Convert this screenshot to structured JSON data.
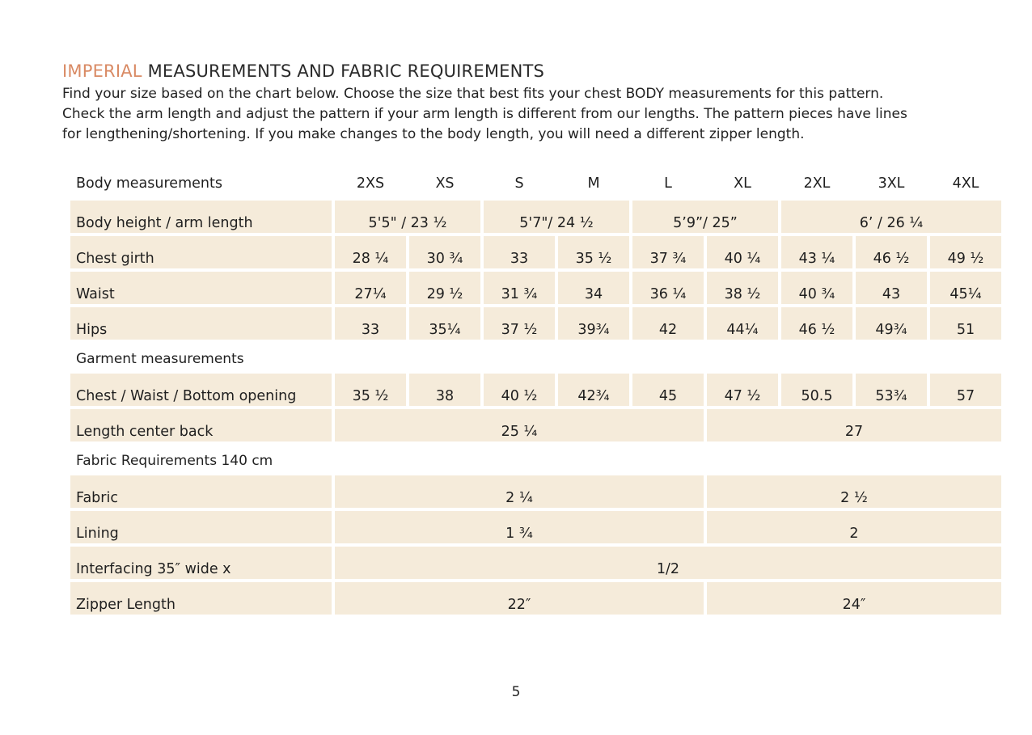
{
  "title": {
    "accent": "IMPERIAL",
    "rest": "MEASUREMENTS AND FABRIC REQUIREMENTS"
  },
  "intro_lines": [
    "Find your size based on the chart below. Choose the size that best fits your chest BODY measurements for this pattern.",
    "Check the arm length and adjust the pattern if your arm length is different from our lengths. The pattern pieces have lines",
    "for lengthening/shortening. If you make changes to the body length, you will need a different zipper length."
  ],
  "colors": {
    "accent": "#d98a64",
    "cell_background": "#f5ebda"
  },
  "table": {
    "header_label": "Body measurements",
    "sizes": [
      "2XS",
      "XS",
      "S",
      "M",
      "L",
      "XL",
      "2XL",
      "3XL",
      "4XL"
    ],
    "rows": [
      {
        "label": "Body height / arm length",
        "cells": [
          {
            "text": "5'5\" / 23 ½",
            "span": 2
          },
          {
            "text": "5'7\"/ 24 ½",
            "span": 2
          },
          {
            "text": "5’9”/ 25”",
            "span": 2
          },
          {
            "text": "6’ / 26 ¼",
            "span": 3
          }
        ]
      },
      {
        "label": "Chest girth",
        "cells": [
          {
            "text": "28 ¼",
            "span": 1
          },
          {
            "text": "30 ¾",
            "span": 1
          },
          {
            "text": "33",
            "span": 1
          },
          {
            "text": "35 ½",
            "span": 1
          },
          {
            "text": "37 ¾",
            "span": 1
          },
          {
            "text": "40 ¼",
            "span": 1
          },
          {
            "text": "43 ¼",
            "span": 1
          },
          {
            "text": "46 ½",
            "span": 1
          },
          {
            "text": "49 ½",
            "span": 1
          }
        ]
      },
      {
        "label": "Waist",
        "cells": [
          {
            "text": "27¼",
            "span": 1
          },
          {
            "text": "29 ½",
            "span": 1
          },
          {
            "text": "31 ¾",
            "span": 1
          },
          {
            "text": "34",
            "span": 1
          },
          {
            "text": "36 ¼",
            "span": 1
          },
          {
            "text": "38 ½",
            "span": 1
          },
          {
            "text": "40 ¾",
            "span": 1
          },
          {
            "text": "43",
            "span": 1
          },
          {
            "text": "45¼",
            "span": 1
          }
        ]
      },
      {
        "label": "Hips",
        "cells": [
          {
            "text": "33",
            "span": 1
          },
          {
            "text": "35¼",
            "span": 1
          },
          {
            "text": "37 ½",
            "span": 1
          },
          {
            "text": "39¾",
            "span": 1
          },
          {
            "text": "42",
            "span": 1
          },
          {
            "text": "44¼",
            "span": 1
          },
          {
            "text": "46 ½",
            "span": 1
          },
          {
            "text": "49¾",
            "span": 1
          },
          {
            "text": "51",
            "span": 1
          }
        ]
      },
      {
        "section": "Garment measurements"
      },
      {
        "label": "Chest / Waist / Bottom opening",
        "cells": [
          {
            "text": "35 ½",
            "span": 1
          },
          {
            "text": "38",
            "span": 1
          },
          {
            "text": "40 ½",
            "span": 1
          },
          {
            "text": "42¾",
            "span": 1
          },
          {
            "text": "45",
            "span": 1
          },
          {
            "text": "47 ½",
            "span": 1
          },
          {
            "text": "50.5",
            "span": 1
          },
          {
            "text": "53¾",
            "span": 1
          },
          {
            "text": "57",
            "span": 1
          }
        ]
      },
      {
        "label": "Length center back",
        "cells": [
          {
            "text": "25 ¼",
            "span": 5
          },
          {
            "text": "27",
            "span": 4
          }
        ]
      },
      {
        "section": "Fabric Requirements 140 cm"
      },
      {
        "label": "Fabric",
        "cells": [
          {
            "text": "2 ¼",
            "span": 5
          },
          {
            "text": "2 ½",
            "span": 4
          }
        ]
      },
      {
        "label": "Lining",
        "cells": [
          {
            "text": "1 ¾",
            "span": 5
          },
          {
            "text": "2",
            "span": 4
          }
        ]
      },
      {
        "label": "Interfacing  35″ wide x",
        "cells": [
          {
            "text": "1/2",
            "span": 9
          }
        ]
      },
      {
        "label": "Zipper Length",
        "cells": [
          {
            "text": "22″",
            "span": 5
          },
          {
            "text": "24″",
            "span": 4
          }
        ]
      }
    ]
  },
  "page_number": "5"
}
